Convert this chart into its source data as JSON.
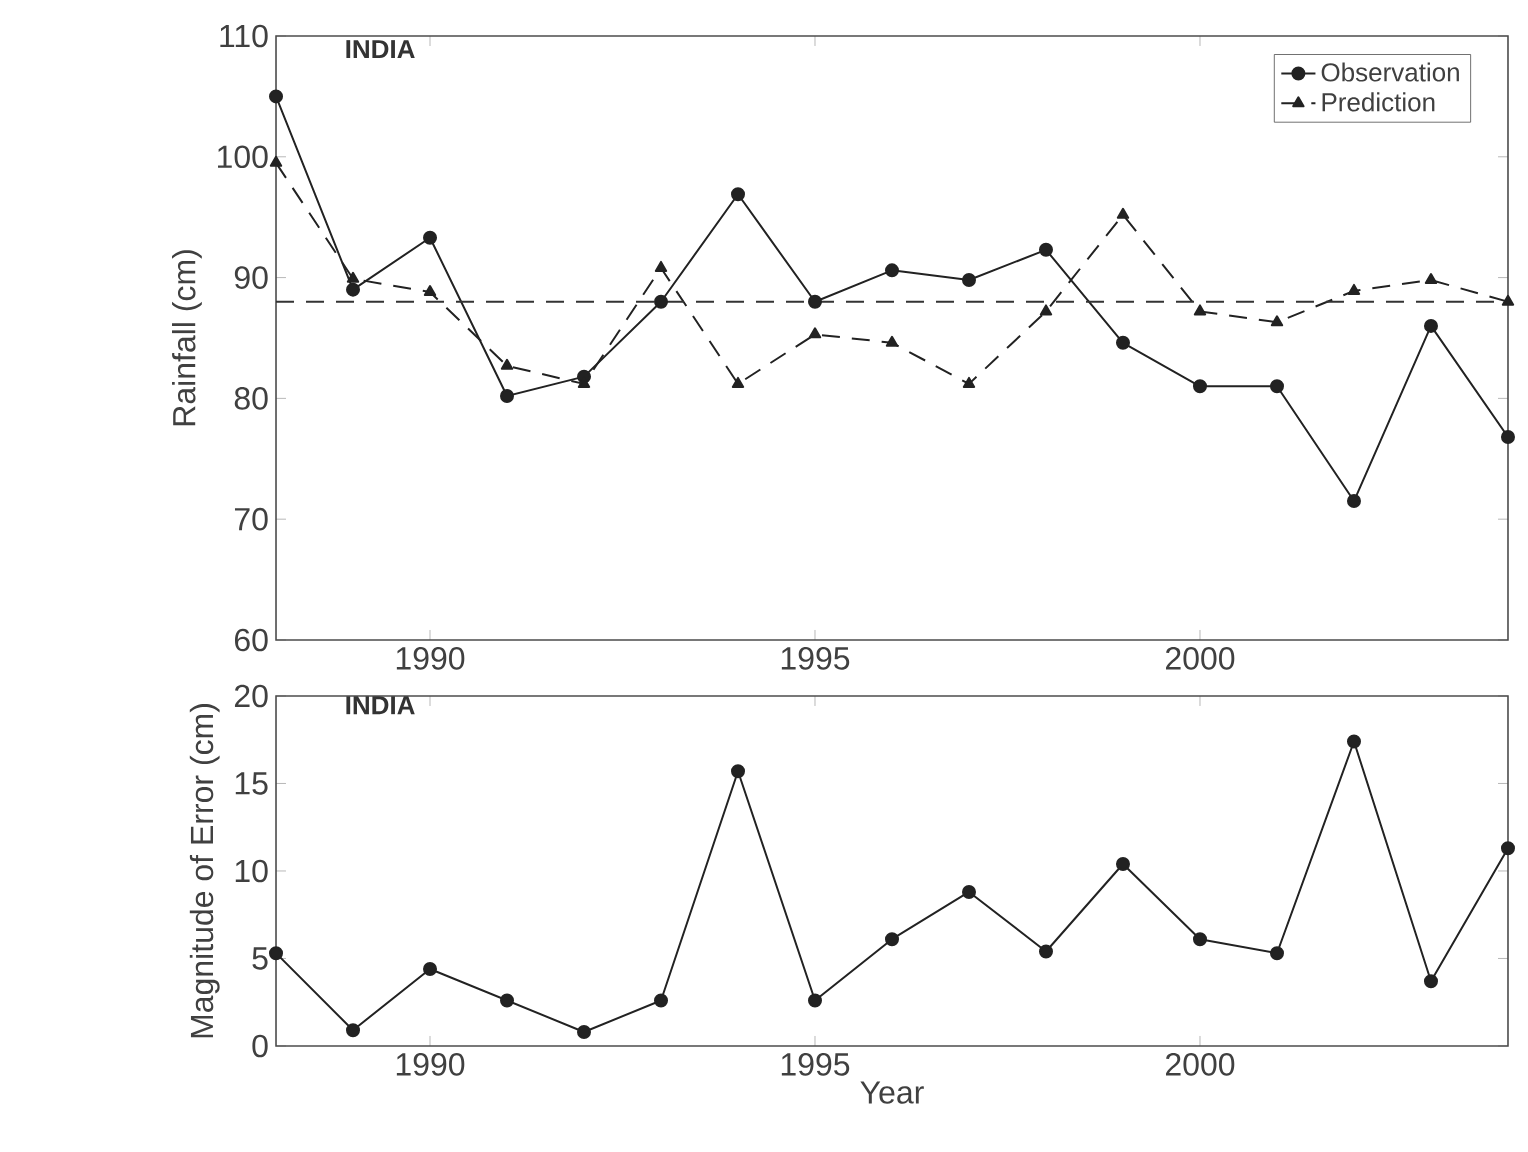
{
  "chart_data": [
    {
      "type": "line",
      "title": "INDIA",
      "ylabel": "Rainfall (cm)",
      "x": [
        1988,
        1989,
        1990,
        1991,
        1992,
        1993,
        1994,
        1995,
        1996,
        1997,
        1998,
        1999,
        2000,
        2001,
        2002,
        2003,
        2004
      ],
      "xlim": [
        1988,
        2004
      ],
      "xticks": [
        1990,
        1995,
        2000
      ],
      "ylim": [
        60,
        110
      ],
      "yticks": [
        60,
        70,
        80,
        90,
        100,
        110
      ],
      "legend": "top right",
      "series": [
        {
          "name": "Observation",
          "color": "#222222",
          "marker": "circle",
          "line_style": "solid",
          "values": [
            105,
            89,
            93.3,
            80.2,
            81.8,
            88,
            96.9,
            88,
            90.6,
            89.8,
            92.3,
            84.6,
            81,
            81,
            71.5,
            86,
            76.8
          ]
        },
        {
          "name": "Prediction",
          "color": "#222222",
          "marker": "triangle",
          "line_style": "dashed",
          "values": [
            99.5,
            89.9,
            88.8,
            82.7,
            81.2,
            90.8,
            81.2,
            85.3,
            84.6,
            81.2,
            87.2,
            95.2,
            87.2,
            86.3,
            88.9,
            89.8,
            88
          ]
        }
      ],
      "ref_lines": [
        {
          "axis": "y",
          "value": 88,
          "color": "#333333",
          "line_style": "dashed"
        }
      ]
    },
    {
      "type": "line",
      "title": "INDIA",
      "xlabel": "Year",
      "ylabel": "Magnitude of Error (cm)",
      "x": [
        1988,
        1989,
        1990,
        1991,
        1992,
        1993,
        1994,
        1995,
        1996,
        1997,
        1998,
        1999,
        2000,
        2001,
        2002,
        2003,
        2004
      ],
      "xlim": [
        1988,
        2004
      ],
      "xticks": [
        1990,
        1995,
        2000
      ],
      "ylim": [
        0,
        20
      ],
      "yticks": [
        0,
        5,
        10,
        15,
        20
      ],
      "series": [
        {
          "color": "#222222",
          "marker": "circle",
          "line_style": "solid",
          "values": [
            5.3,
            0.9,
            4.4,
            2.6,
            0.8,
            2.6,
            15.7,
            2.6,
            6.1,
            8.8,
            5.4,
            10.4,
            6.1,
            5.3,
            17.4,
            3.7,
            11.3
          ]
        }
      ]
    }
  ]
}
